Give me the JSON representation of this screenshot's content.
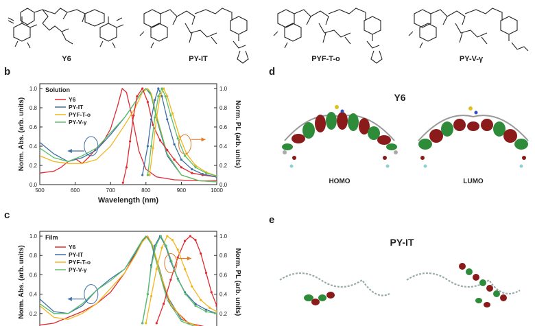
{
  "molecules": {
    "names": [
      "Y6",
      "PY-IT",
      "PYF-T-o",
      "PY-V-γ"
    ]
  },
  "panels": {
    "b": {
      "letter": "b",
      "condition": "Solution",
      "xlabel": "Wavelength (nm)",
      "ylabel_left": "Norm. Abs. (arb. units)",
      "ylabel_right": "Norm. PL (arb. units)"
    },
    "c": {
      "letter": "c",
      "condition": "Film",
      "ylabel_left": "Norm. Abs. (arb. units)",
      "ylabel_right": "Norm. PL (arb. units)"
    },
    "d": {
      "letter": "d",
      "title": "Y6",
      "homo": "HOMO",
      "lumo": "LUMO"
    },
    "e": {
      "letter": "e",
      "title": "PY-IT"
    }
  },
  "colors": {
    "y6": "#e0292f",
    "py_it": "#3f6fa8",
    "pyf_t_o": "#f2b51c",
    "py_v_g": "#5cbf6c",
    "arrow_abs": "#3f6fa8",
    "arrow_pl": "#e07a26",
    "title_d": "#e0292f",
    "title_e": "#1f3f80",
    "orbital_pos": "#8b1a1a",
    "orbital_neg": "#2e8b3a"
  },
  "chart_data": [
    {
      "type": "line",
      "panel": "b",
      "xlabel": "Wavelength (nm)",
      "ylabel": "Norm. Abs. (arb. units)",
      "ylabel_right": "Norm. PL (arb. units)",
      "xlim": [
        500,
        1000
      ],
      "ylim": [
        0,
        1.05
      ],
      "xticks": [
        "500",
        "600",
        "700",
        "800",
        "900",
        "1000"
      ],
      "yticks": [
        "0.0",
        "0.2",
        "0.4",
        "0.6",
        "0.8",
        "1.0"
      ],
      "legend_position": "top-left",
      "series": [
        {
          "name": "Y6",
          "kind": "abs",
          "color": "#e0292f",
          "x": [
            500,
            540,
            560,
            580,
            600,
            620,
            640,
            660,
            680,
            700,
            720,
            733,
            745,
            760,
            780,
            800,
            830,
            880,
            950,
            1000
          ],
          "y": [
            0.12,
            0.14,
            0.18,
            0.24,
            0.27,
            0.22,
            0.29,
            0.38,
            0.45,
            0.58,
            0.82,
            1.0,
            0.96,
            0.72,
            0.35,
            0.16,
            0.08,
            0.05,
            0.04,
            0.04
          ]
        },
        {
          "name": "PY-IT",
          "kind": "abs",
          "color": "#3f6fa8",
          "x": [
            500,
            540,
            580,
            620,
            660,
            700,
            740,
            770,
            790,
            800,
            815,
            835,
            860,
            900,
            950,
            1000
          ],
          "y": [
            0.44,
            0.32,
            0.24,
            0.28,
            0.36,
            0.52,
            0.7,
            0.86,
            0.97,
            1.0,
            0.93,
            0.62,
            0.3,
            0.1,
            0.04,
            0.03
          ]
        },
        {
          "name": "PYF-T-o",
          "kind": "abs",
          "color": "#f2b51c",
          "x": [
            500,
            540,
            580,
            620,
            660,
            700,
            740,
            770,
            790,
            805,
            815,
            830,
            860,
            900,
            950,
            1000
          ],
          "y": [
            0.3,
            0.24,
            0.22,
            0.22,
            0.26,
            0.4,
            0.62,
            0.8,
            0.96,
            1.0,
            0.95,
            0.72,
            0.32,
            0.1,
            0.04,
            0.03
          ]
        },
        {
          "name": "PY-V-γ",
          "kind": "abs",
          "color": "#5cbf6c",
          "x": [
            500,
            540,
            580,
            620,
            660,
            700,
            740,
            770,
            790,
            800,
            812,
            830,
            860,
            900,
            950,
            1000
          ],
          "y": [
            0.38,
            0.28,
            0.24,
            0.3,
            0.38,
            0.54,
            0.7,
            0.86,
            0.97,
            1.0,
            0.96,
            0.7,
            0.32,
            0.1,
            0.04,
            0.03
          ]
        },
        {
          "name": "Y6 PL",
          "kind": "pl",
          "color": "#e0292f",
          "x": [
            735,
            745,
            755,
            765,
            775,
            790,
            805,
            820,
            840,
            860,
            880,
            900,
            930,
            960,
            1000
          ],
          "y": [
            0.02,
            0.18,
            0.45,
            0.72,
            0.92,
            1.0,
            0.86,
            0.62,
            0.46,
            0.36,
            0.26,
            0.18,
            0.12,
            0.1,
            0.08
          ]
        },
        {
          "name": "PY-IT PL",
          "kind": "pl",
          "color": "#3f6fa8",
          "x": [
            790,
            805,
            815,
            825,
            835,
            845,
            860,
            880,
            900,
            930,
            960,
            1000
          ],
          "y": [
            0.1,
            0.4,
            0.68,
            0.88,
            1.0,
            0.92,
            0.68,
            0.42,
            0.26,
            0.16,
            0.11,
            0.08
          ]
        },
        {
          "name": "PYF-T-o PL",
          "kind": "pl",
          "color": "#f2b51c",
          "x": [
            810,
            820,
            830,
            840,
            850,
            860,
            875,
            895,
            915,
            940,
            970,
            1000
          ],
          "y": [
            0.1,
            0.38,
            0.7,
            0.92,
            1.0,
            0.92,
            0.74,
            0.5,
            0.32,
            0.2,
            0.13,
            0.09
          ]
        },
        {
          "name": "PY-V-γ PL",
          "kind": "pl",
          "color": "#5cbf6c",
          "x": [
            805,
            815,
            825,
            835,
            845,
            855,
            870,
            890,
            910,
            940,
            970,
            1000
          ],
          "y": [
            0.1,
            0.4,
            0.7,
            0.92,
            1.0,
            0.92,
            0.72,
            0.48,
            0.3,
            0.18,
            0.12,
            0.09
          ]
        }
      ]
    },
    {
      "type": "line",
      "panel": "c",
      "ylabel": "Norm. Abs. (arb. units)",
      "ylabel_right": "Norm. PL (arb. units)",
      "xlim": [
        500,
        1000
      ],
      "ylim": [
        0,
        1.05
      ],
      "yticks": [
        "0.2",
        "0.4",
        "0.6",
        "0.8",
        "1.0"
      ],
      "legend_position": "top-left",
      "series": [
        {
          "name": "Y6",
          "kind": "abs",
          "color": "#e0292f",
          "x": [
            500,
            540,
            580,
            620,
            660,
            700,
            740,
            770,
            790,
            805,
            820,
            840,
            870,
            920,
            1000
          ],
          "y": [
            0.08,
            0.1,
            0.16,
            0.22,
            0.3,
            0.42,
            0.62,
            0.82,
            0.96,
            1.0,
            0.88,
            0.6,
            0.28,
            0.1,
            0.04
          ]
        },
        {
          "name": "PY-IT",
          "kind": "abs",
          "color": "#3f6fa8",
          "x": [
            500,
            540,
            580,
            620,
            660,
            700,
            740,
            770,
            790,
            800,
            815,
            835,
            860,
            900,
            950,
            1000
          ],
          "y": [
            0.35,
            0.22,
            0.2,
            0.28,
            0.44,
            0.56,
            0.66,
            0.82,
            0.95,
            1.0,
            0.94,
            0.7,
            0.38,
            0.14,
            0.06,
            0.04
          ]
        },
        {
          "name": "PYF-T-o",
          "kind": "abs",
          "color": "#f2b51c",
          "x": [
            500,
            540,
            580,
            620,
            660,
            700,
            740,
            770,
            790,
            805,
            820,
            840,
            870,
            910,
            960,
            1000
          ],
          "y": [
            0.28,
            0.16,
            0.14,
            0.2,
            0.3,
            0.46,
            0.62,
            0.8,
            0.94,
            1.0,
            0.9,
            0.62,
            0.3,
            0.12,
            0.05,
            0.04
          ]
        },
        {
          "name": "PY-V-γ",
          "kind": "abs",
          "color": "#5cbf6c",
          "x": [
            500,
            540,
            580,
            620,
            660,
            700,
            740,
            770,
            790,
            800,
            815,
            835,
            860,
            900,
            950,
            1000
          ],
          "y": [
            0.3,
            0.2,
            0.2,
            0.3,
            0.44,
            0.54,
            0.66,
            0.84,
            0.96,
            1.0,
            0.92,
            0.66,
            0.34,
            0.12,
            0.05,
            0.04
          ]
        },
        {
          "name": "Y6 PL",
          "kind": "pl",
          "color": "#e0292f",
          "x": [
            830,
            850,
            870,
            890,
            910,
            925,
            940,
            955,
            970,
            985,
            1000
          ],
          "y": [
            0.1,
            0.3,
            0.55,
            0.78,
            0.95,
            1.0,
            0.96,
            0.82,
            0.62,
            0.42,
            0.28
          ]
        },
        {
          "name": "PY-IT PL",
          "kind": "pl",
          "color": "#3f6fa8",
          "x": [
            790,
            805,
            815,
            825,
            840,
            855,
            870,
            890,
            910,
            940,
            970,
            1000
          ],
          "y": [
            0.1,
            0.4,
            0.7,
            0.9,
            1.0,
            0.9,
            0.74,
            0.56,
            0.42,
            0.3,
            0.24,
            0.2
          ]
        },
        {
          "name": "PYF-T-o PL",
          "kind": "pl",
          "color": "#f2b51c",
          "x": [
            800,
            815,
            830,
            845,
            860,
            875,
            890,
            910,
            930,
            955,
            980,
            1000
          ],
          "y": [
            0.1,
            0.38,
            0.66,
            0.88,
            1.0,
            0.96,
            0.86,
            0.66,
            0.48,
            0.34,
            0.26,
            0.22
          ]
        },
        {
          "name": "PY-V-γ PL",
          "kind": "pl",
          "color": "#5cbf6c",
          "x": [
            790,
            805,
            815,
            828,
            842,
            857,
            872,
            892,
            912,
            940,
            970,
            1000
          ],
          "y": [
            0.1,
            0.4,
            0.68,
            0.9,
            1.0,
            0.9,
            0.74,
            0.54,
            0.4,
            0.28,
            0.22,
            0.2
          ]
        }
      ]
    }
  ]
}
